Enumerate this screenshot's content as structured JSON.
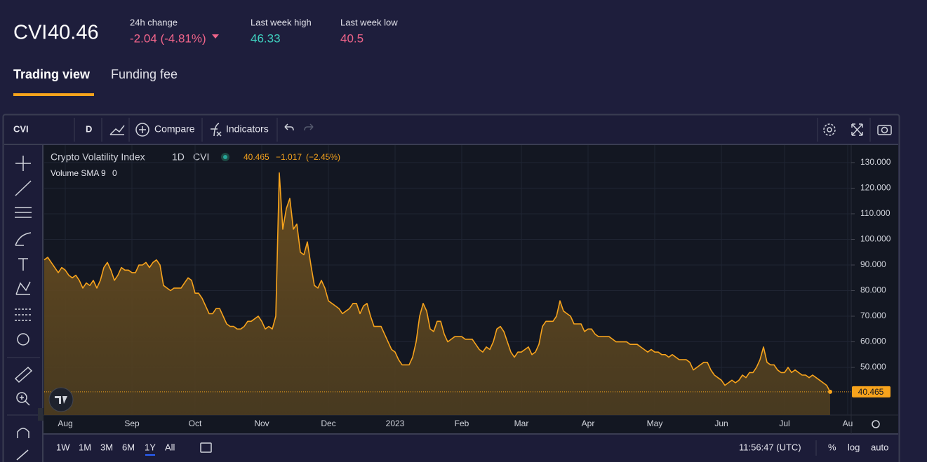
{
  "header": {
    "symbol": "CVI",
    "price": "40.46",
    "stats": [
      {
        "label": "24h change",
        "value": "-2.04 (-4.81%)"
      },
      {
        "label": "Last week high",
        "value": "46.33"
      },
      {
        "label": "Last week low",
        "value": "40.5"
      }
    ]
  },
  "tabs": [
    "Trading view",
    "Funding fee"
  ],
  "toolbar": {
    "symbol": "CVI",
    "interval": "D",
    "compare": "Compare",
    "indicators": "Indicators"
  },
  "bottom_bar": {
    "ranges": [
      "1W",
      "1M",
      "3M",
      "6M",
      "1Y",
      "All"
    ],
    "time": "11:56:47 (UTC)",
    "options": [
      "%",
      "log",
      "auto"
    ]
  },
  "chart_data": {
    "type": "area",
    "title": "Crypto Volatility Index",
    "interval": "1D",
    "legend_values": [
      "40.465",
      "−1.017",
      "(−2.45%)"
    ],
    "volume_label": "Volume SMA 9",
    "volume_value": 0,
    "last_value_label": "40.465",
    "categories": [
      null,
      null,
      null,
      null,
      null,
      null,
      "Aug",
      null,
      null,
      null,
      null,
      null,
      null,
      null,
      null,
      null,
      null,
      null,
      null,
      null,
      null,
      null,
      null,
      null,
      null,
      "Sep",
      null,
      null,
      null,
      null,
      null,
      null,
      null,
      null,
      null,
      null,
      null,
      null,
      null,
      null,
      null,
      null,
      null,
      "Oct",
      null,
      null,
      null,
      null,
      null,
      null,
      null,
      null,
      null,
      null,
      null,
      null,
      null,
      null,
      null,
      null,
      null,
      null,
      "Nov",
      null,
      null,
      null,
      null,
      null,
      null,
      null,
      null,
      null,
      null,
      null,
      null,
      null,
      null,
      null,
      null,
      null,
      null,
      "Dec",
      null,
      null,
      null,
      null,
      null,
      null,
      null,
      null,
      null,
      null,
      null,
      null,
      null,
      null,
      null,
      null,
      null,
      null,
      "2023",
      null,
      null,
      null,
      null,
      null,
      null,
      null,
      null,
      null,
      null,
      null,
      null,
      null,
      null,
      null,
      null,
      null,
      null,
      "Feb",
      null,
      null,
      null,
      null,
      null,
      null,
      null,
      null,
      null,
      null,
      null,
      null,
      null,
      null,
      null,
      null,
      "Mar",
      null,
      null,
      null,
      null,
      null,
      null,
      null,
      null,
      null,
      null,
      null,
      null,
      null,
      null,
      null,
      null,
      null,
      null,
      "Apr",
      null,
      null,
      null,
      null,
      null,
      null,
      null,
      null,
      null,
      null,
      null,
      null,
      null,
      null,
      null,
      null,
      null,
      null,
      "May",
      null,
      null,
      null,
      null,
      null,
      null,
      null,
      null,
      null,
      null,
      null,
      null,
      null,
      null,
      null,
      null,
      null,
      null,
      "Jun",
      null,
      null,
      null,
      null,
      null,
      null,
      null,
      null,
      null,
      null,
      null,
      null,
      null,
      null,
      null,
      null,
      null,
      "Jul",
      null,
      null,
      null,
      null,
      null,
      null,
      null,
      null,
      null,
      null,
      null,
      null,
      null,
      null,
      null,
      null,
      null,
      "Au",
      null
    ],
    "series": [
      {
        "name": "CVI",
        "color": "#f7a31c",
        "values": [
          92,
          93,
          91,
          89,
          87,
          89,
          88,
          86,
          85,
          86,
          84,
          81,
          83,
          82,
          84,
          81,
          84,
          89,
          91,
          88,
          84,
          86,
          89,
          88,
          88,
          87,
          87,
          90,
          90,
          91,
          89,
          91,
          92,
          90,
          82,
          81,
          80,
          81,
          81,
          81,
          83,
          85,
          84,
          79,
          79,
          77,
          74,
          71,
          71,
          73,
          73,
          70,
          67,
          66,
          66,
          65,
          65,
          66,
          68,
          68,
          69,
          70,
          68,
          65,
          66,
          65,
          70,
          126,
          104,
          112,
          116,
          104,
          106,
          95,
          94,
          99,
          90,
          82,
          81,
          84,
          81,
          76,
          75,
          74,
          73,
          71,
          72,
          73,
          75,
          75,
          71,
          74,
          75,
          70,
          66,
          66,
          66,
          63,
          60,
          57,
          56,
          53,
          51,
          51,
          51,
          54,
          60,
          70,
          75,
          72,
          65,
          64,
          68,
          68,
          63,
          60,
          61,
          62,
          62,
          62,
          61,
          61,
          61,
          59,
          57,
          56,
          58,
          57,
          60,
          65,
          66,
          64,
          60,
          56,
          54,
          56,
          56,
          57,
          58,
          55,
          56,
          59,
          66,
          68,
          68,
          68,
          70,
          76,
          72,
          71,
          70,
          67,
          67,
          67,
          64,
          65,
          65,
          63,
          62,
          62,
          62,
          62,
          61,
          60,
          60,
          60,
          60,
          59,
          59,
          59,
          58,
          57,
          56,
          57,
          56,
          56,
          55,
          55,
          54,
          55,
          54,
          53,
          53,
          53,
          52,
          49,
          50,
          51,
          52,
          52,
          49,
          47,
          46,
          45,
          43,
          44,
          45,
          44,
          45,
          47,
          46,
          48,
          48,
          50,
          53,
          58,
          52,
          51,
          51,
          49,
          48,
          48,
          50,
          48,
          49,
          48,
          47,
          47,
          46,
          47,
          46,
          45,
          44,
          43,
          40.465,
          null,
          null,
          null,
          null,
          null,
          null
        ]
      }
    ],
    "ylim": [
      31.4,
      136
    ],
    "yticks": [
      {
        "value": 50,
        "label": "50.000"
      },
      {
        "value": 60,
        "label": "60.000"
      },
      {
        "value": 70,
        "label": "70.000"
      },
      {
        "value": 80,
        "label": "80.000"
      },
      {
        "value": 90,
        "label": "90.000"
      },
      {
        "value": 100,
        "label": "100.000"
      },
      {
        "value": 110,
        "label": "110.000"
      },
      {
        "value": 120,
        "label": "120.000"
      },
      {
        "value": 130,
        "label": "130.000"
      }
    ],
    "grid": true
  }
}
